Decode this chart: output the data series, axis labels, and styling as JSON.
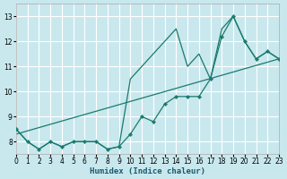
{
  "xlabel": "Humidex (Indice chaleur)",
  "bg_color": "#c8e8ee",
  "grid_color": "#ffffff",
  "line_color": "#1a7a6e",
  "xlim": [
    0,
    23
  ],
  "ylim": [
    7.5,
    13.5
  ],
  "x_ticks": [
    0,
    1,
    2,
    3,
    4,
    5,
    6,
    7,
    8,
    9,
    10,
    11,
    12,
    13,
    14,
    15,
    16,
    17,
    18,
    19,
    20,
    21,
    22,
    23
  ],
  "y_ticks": [
    8,
    9,
    10,
    11,
    12,
    13
  ],
  "line_marker_x": [
    0,
    1,
    2,
    3,
    4,
    5,
    6,
    7,
    8,
    9,
    10,
    11,
    12,
    13,
    14,
    15,
    16,
    17,
    18,
    19,
    20,
    21,
    22,
    23
  ],
  "line_marker_y": [
    8.5,
    8.0,
    7.7,
    8.0,
    7.8,
    8.0,
    8.0,
    8.0,
    7.7,
    7.8,
    8.3,
    9.0,
    8.8,
    9.5,
    9.8,
    9.8,
    9.8,
    10.5,
    12.2,
    13.0,
    12.0,
    11.3,
    11.6,
    11.3
  ],
  "line_smooth_x": [
    0,
    1,
    2,
    3,
    4,
    5,
    6,
    7,
    8,
    9,
    10,
    11,
    12,
    13,
    14,
    15,
    16,
    17,
    18,
    19,
    20,
    21,
    22,
    23
  ],
  "line_smooth_y": [
    8.5,
    8.0,
    7.7,
    8.0,
    7.8,
    8.0,
    8.0,
    8.0,
    7.7,
    7.8,
    10.5,
    11.0,
    11.5,
    12.0,
    12.5,
    11.0,
    11.5,
    10.5,
    12.5,
    13.0,
    12.0,
    11.3,
    11.6,
    11.3
  ],
  "trend_x": [
    0,
    23
  ],
  "trend_y": [
    8.3,
    11.3
  ]
}
